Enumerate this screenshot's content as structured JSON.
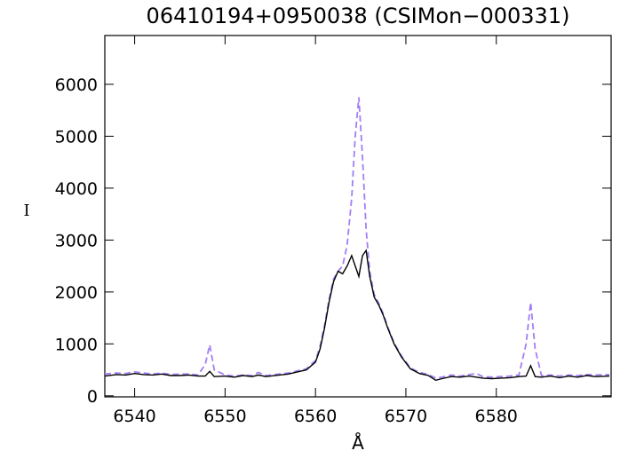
{
  "chart_data": {
    "type": "line",
    "title": "06410194+0950038 (CSIMon−000331)",
    "x_label": "Å",
    "y_label": "I",
    "x": [
      6536.7,
      6538,
      6539,
      6540,
      6541,
      6542,
      6543,
      6544,
      6545,
      6546,
      6547,
      6547.8,
      6548.3,
      6548.8,
      6550,
      6551,
      6552,
      6553,
      6553.7,
      6554.5,
      6556,
      6557,
      6558,
      6559,
      6560,
      6560.5,
      6561,
      6561.5,
      6562,
      6562.5,
      6563,
      6563.5,
      6564,
      6564.4,
      6564.8,
      6565.2,
      6565.6,
      6566,
      6566.5,
      6567,
      6567.5,
      6568,
      6568.7,
      6569.5,
      6570.5,
      6571.5,
      6572.5,
      6573.3,
      6574,
      6575,
      6576,
      6577,
      6577.8,
      6578.5,
      6579.5,
      6580.5,
      6581.5,
      6582.5,
      6583.3,
      6583.8,
      6584.3,
      6585,
      6586,
      6587,
      6588,
      6589,
      6590,
      6591,
      6592.5
    ],
    "series": [
      {
        "color": "#000000",
        "dash": false,
        "values": [
          380,
          410,
          400,
          430,
          410,
          400,
          420,
          390,
          390,
          400,
          380,
          380,
          470,
          370,
          380,
          360,
          390,
          370,
          400,
          370,
          400,
          420,
          460,
          500,
          650,
          900,
          1300,
          1800,
          2200,
          2400,
          2350,
          2500,
          2700,
          2500,
          2300,
          2700,
          2800,
          2300,
          1900,
          1750,
          1550,
          1300,
          1000,
          750,
          520,
          430,
          390,
          300,
          330,
          370,
          360,
          380,
          360,
          340,
          330,
          340,
          350,
          370,
          380,
          580,
          370,
          360,
          380,
          350,
          380,
          360,
          390,
          370,
          380
        ]
      },
      {
        "color": "#a37ef5",
        "dash": true,
        "values": [
          420,
          440,
          430,
          460,
          440,
          420,
          440,
          410,
          420,
          420,
          400,
          600,
          980,
          500,
          400,
          380,
          400,
          390,
          450,
          390,
          420,
          440,
          480,
          520,
          680,
          950,
          1350,
          1850,
          2250,
          2400,
          2500,
          2900,
          3800,
          5000,
          5750,
          4600,
          3200,
          2400,
          1950,
          1780,
          1580,
          1320,
          1020,
          770,
          540,
          450,
          410,
          340,
          360,
          400,
          380,
          410,
          430,
          370,
          360,
          370,
          380,
          400,
          1000,
          1800,
          900,
          390,
          400,
          380,
          400,
          390,
          410,
          400,
          410
        ]
      }
    ],
    "xlim": [
      6536.7,
      6592.7
    ],
    "ylim": [
      -20,
      6940
    ],
    "xticks": [
      6540,
      6550,
      6560,
      6570,
      6580
    ],
    "yticks": [
      0,
      1000,
      2000,
      3000,
      4000,
      5000,
      6000
    ]
  }
}
